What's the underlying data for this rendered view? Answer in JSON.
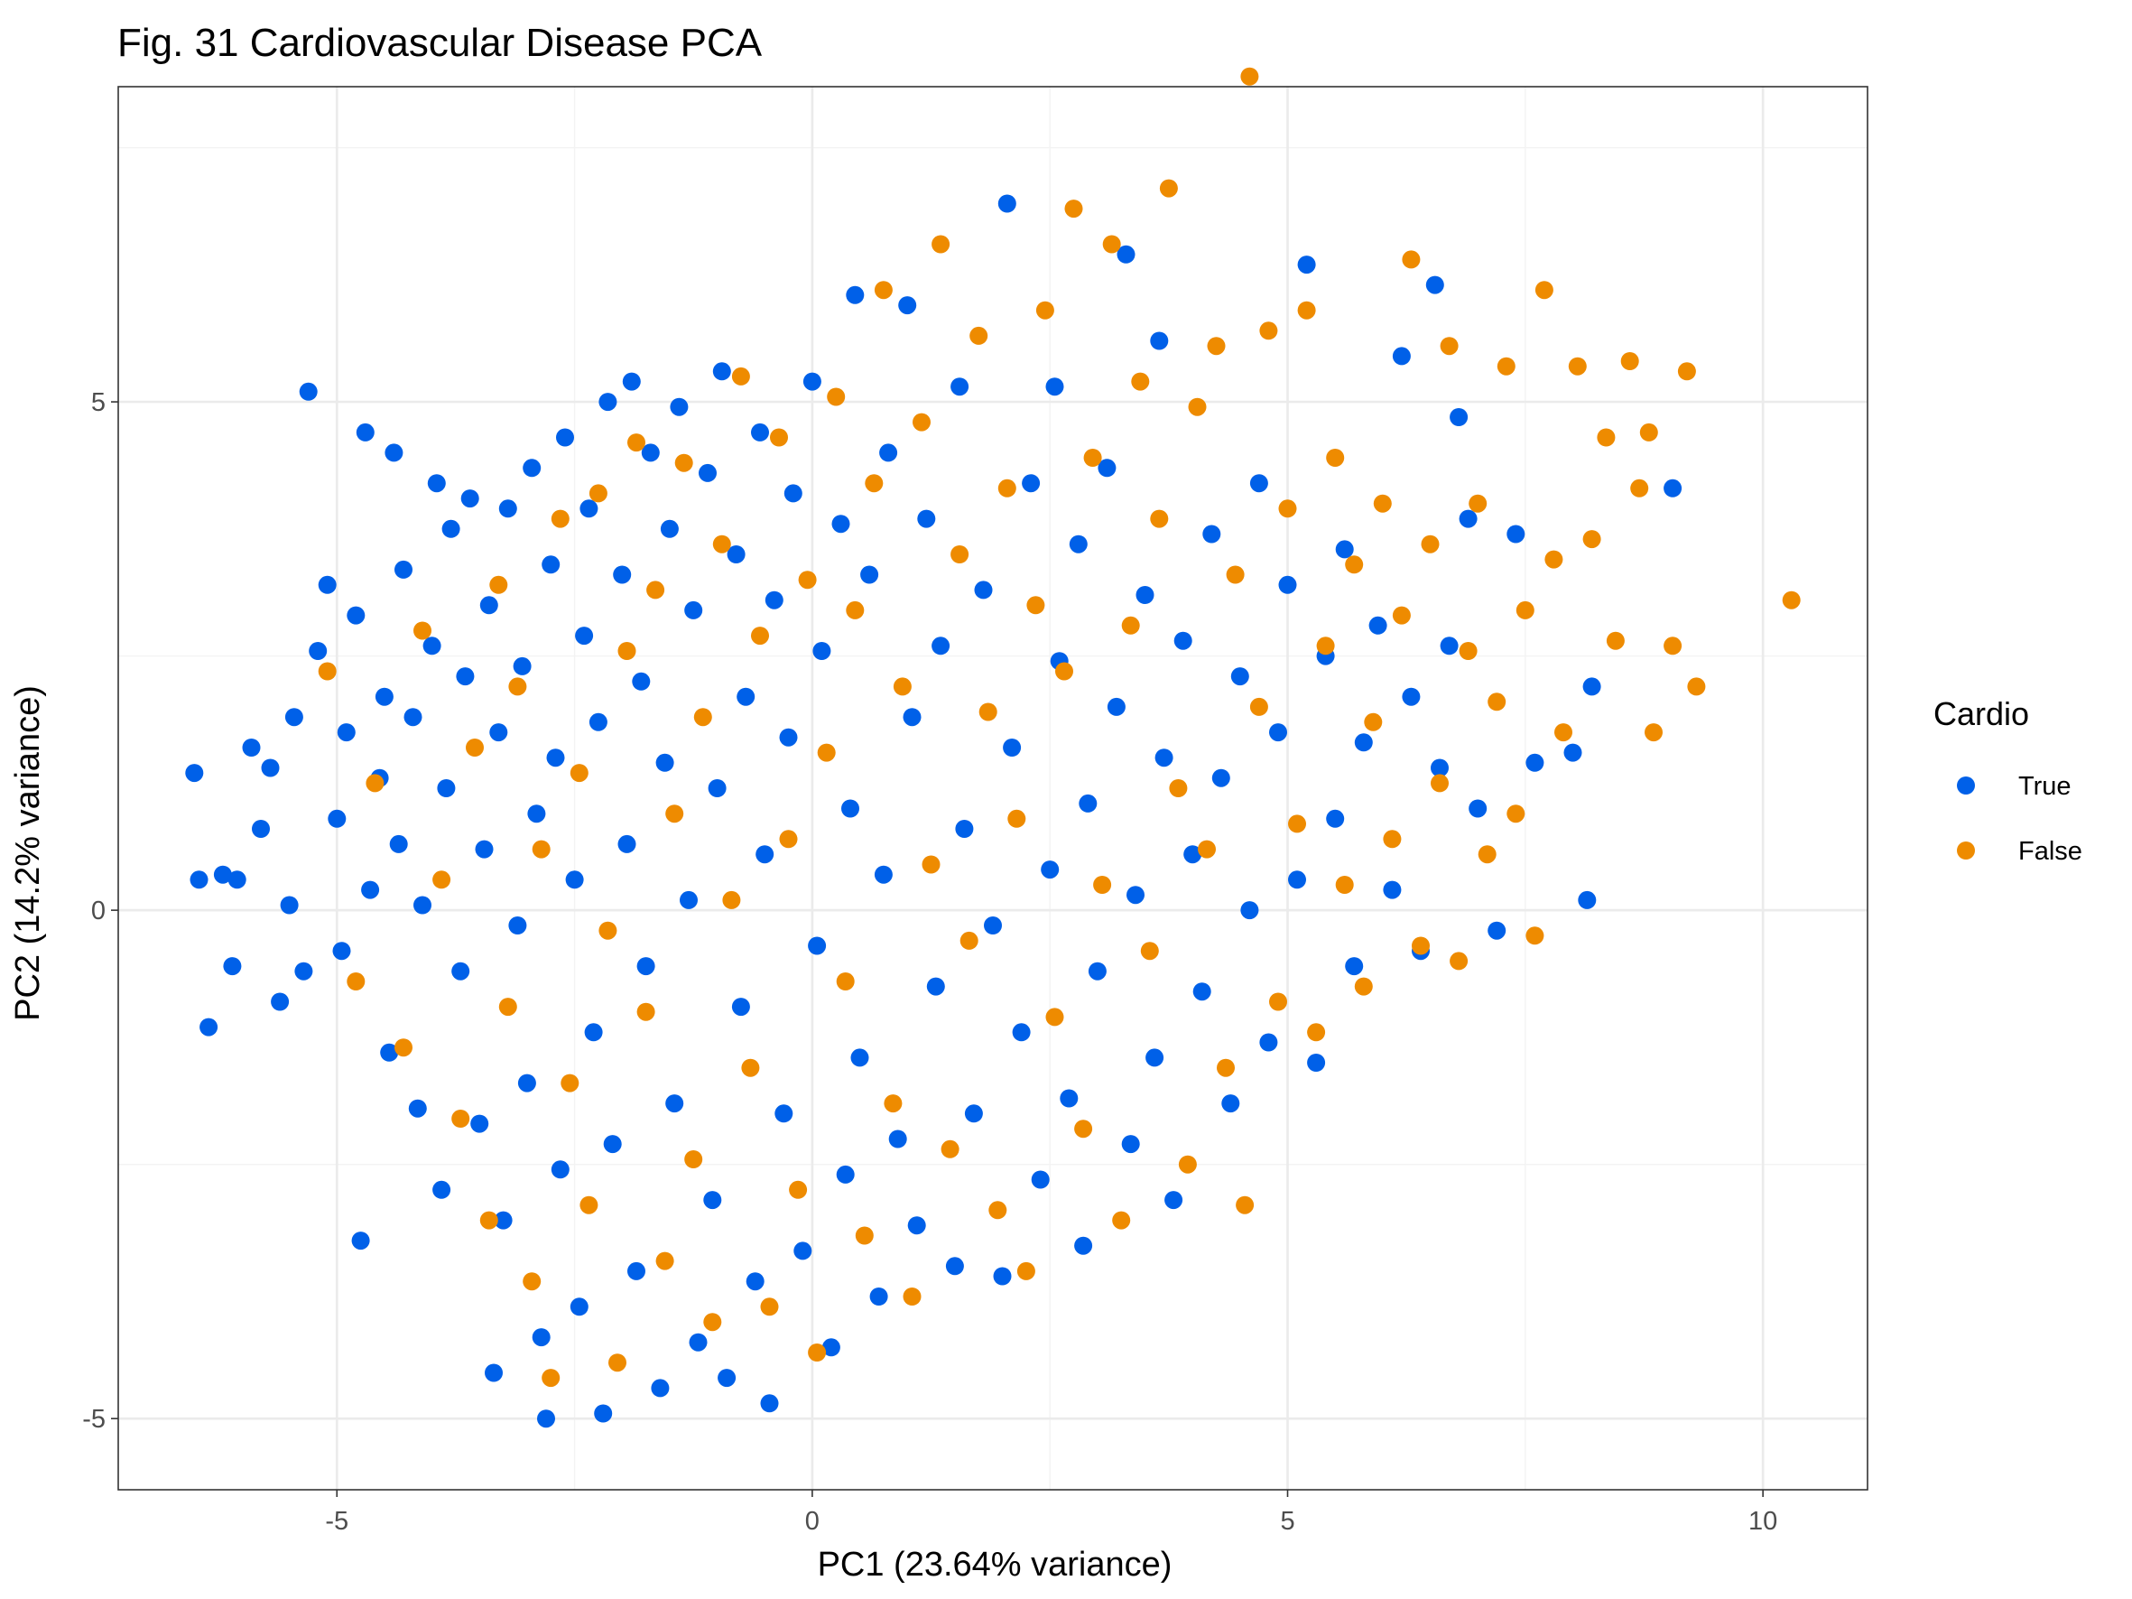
{
  "chart_data": {
    "type": "scatter",
    "title": "Fig. 31 Cardiovascular Disease PCA",
    "xlabel": "PC1 (23.64% variance)",
    "ylabel": "PC2 (14.2% variance)",
    "xlim": [
      -7.3,
      11.1
    ],
    "ylim": [
      -5.7,
      8.1
    ],
    "xticks": [
      -5,
      0,
      5,
      10
    ],
    "yticks": [
      -5,
      0,
      5
    ],
    "xtick_labels": [
      "-5",
      "0",
      "5",
      "10"
    ],
    "ytick_labels": [
      "-5",
      "0",
      "5"
    ],
    "grid": true,
    "legend": {
      "title": "Cardio",
      "position": "right"
    },
    "series": [
      {
        "name": "True",
        "color": "#0060e8",
        "points": [
          [
            -6.5,
            1.35
          ],
          [
            -6.45,
            0.3
          ],
          [
            -6.35,
            -1.15
          ],
          [
            -6.2,
            0.35
          ],
          [
            -6.1,
            -0.55
          ],
          [
            -6.05,
            0.3
          ],
          [
            -5.9,
            1.6
          ],
          [
            -5.8,
            0.8
          ],
          [
            -5.7,
            1.4
          ],
          [
            -5.6,
            -0.9
          ],
          [
            -5.5,
            0.05
          ],
          [
            -5.45,
            1.9
          ],
          [
            -5.35,
            -0.6
          ],
          [
            -5.3,
            5.1
          ],
          [
            -5.2,
            2.55
          ],
          [
            -5.1,
            3.2
          ],
          [
            -5.0,
            0.9
          ],
          [
            -4.95,
            -0.4
          ],
          [
            -4.9,
            1.75
          ],
          [
            -4.8,
            2.9
          ],
          [
            -4.75,
            -3.25
          ],
          [
            -4.7,
            4.7
          ],
          [
            -4.65,
            0.2
          ],
          [
            -4.55,
            1.3
          ],
          [
            -4.5,
            2.1
          ],
          [
            -4.45,
            -1.4
          ],
          [
            -4.4,
            4.5
          ],
          [
            -4.35,
            0.65
          ],
          [
            -4.3,
            3.35
          ],
          [
            -4.2,
            1.9
          ],
          [
            -4.15,
            -1.95
          ],
          [
            -4.1,
            0.05
          ],
          [
            -4.0,
            2.6
          ],
          [
            -3.95,
            4.2
          ],
          [
            -3.9,
            -2.75
          ],
          [
            -3.85,
            1.2
          ],
          [
            -3.8,
            3.75
          ],
          [
            -3.7,
            -0.6
          ],
          [
            -3.65,
            2.3
          ],
          [
            -3.6,
            4.05
          ],
          [
            -3.5,
            -2.1
          ],
          [
            -3.45,
            0.6
          ],
          [
            -3.4,
            3.0
          ],
          [
            -3.35,
            -4.55
          ],
          [
            -3.3,
            1.75
          ],
          [
            -3.25,
            -3.05
          ],
          [
            -3.2,
            3.95
          ],
          [
            -3.1,
            -0.15
          ],
          [
            -3.05,
            2.4
          ],
          [
            -3.0,
            -1.7
          ],
          [
            -2.95,
            4.35
          ],
          [
            -2.9,
            0.95
          ],
          [
            -2.85,
            -4.2
          ],
          [
            -2.8,
            -5.0
          ],
          [
            -2.75,
            3.4
          ],
          [
            -2.7,
            1.5
          ],
          [
            -2.65,
            -2.55
          ],
          [
            -2.6,
            4.65
          ],
          [
            -2.5,
            0.3
          ],
          [
            -2.45,
            -3.9
          ],
          [
            -2.4,
            2.7
          ],
          [
            -2.35,
            3.95
          ],
          [
            -2.3,
            -1.2
          ],
          [
            -2.25,
            1.85
          ],
          [
            -2.2,
            -4.95
          ],
          [
            -2.15,
            5.0
          ],
          [
            -2.1,
            -2.3
          ],
          [
            -2.0,
            3.3
          ],
          [
            -1.95,
            0.65
          ],
          [
            -1.9,
            5.2
          ],
          [
            -1.85,
            -3.55
          ],
          [
            -1.8,
            2.25
          ],
          [
            -1.75,
            -0.55
          ],
          [
            -1.7,
            4.5
          ],
          [
            -1.6,
            -4.7
          ],
          [
            -1.55,
            1.45
          ],
          [
            -1.5,
            3.75
          ],
          [
            -1.45,
            -1.9
          ],
          [
            -1.4,
            4.95
          ],
          [
            -1.3,
            0.1
          ],
          [
            -1.25,
            2.95
          ],
          [
            -1.2,
            -4.25
          ],
          [
            -1.1,
            4.3
          ],
          [
            -1.05,
            -2.85
          ],
          [
            -1.0,
            1.2
          ],
          [
            -0.95,
            5.3
          ],
          [
            -0.9,
            -4.6
          ],
          [
            -0.8,
            3.5
          ],
          [
            -0.75,
            -0.95
          ],
          [
            -0.7,
            2.1
          ],
          [
            -0.6,
            -3.65
          ],
          [
            -0.55,
            4.7
          ],
          [
            -0.5,
            0.55
          ],
          [
            -0.45,
            -4.85
          ],
          [
            -0.4,
            3.05
          ],
          [
            -0.3,
            -2.0
          ],
          [
            -0.25,
            1.7
          ],
          [
            -0.2,
            4.1
          ],
          [
            -0.1,
            -3.35
          ],
          [
            0.0,
            5.2
          ],
          [
            0.05,
            -0.35
          ],
          [
            0.1,
            2.55
          ],
          [
            0.2,
            -4.3
          ],
          [
            0.3,
            3.8
          ],
          [
            0.35,
            -2.6
          ],
          [
            0.4,
            1.0
          ],
          [
            0.45,
            6.05
          ],
          [
            0.5,
            -1.45
          ],
          [
            0.6,
            3.3
          ],
          [
            0.7,
            -3.8
          ],
          [
            0.75,
            0.35
          ],
          [
            0.8,
            4.5
          ],
          [
            0.9,
            -2.25
          ],
          [
            1.0,
            5.95
          ],
          [
            1.05,
            1.9
          ],
          [
            1.1,
            -3.1
          ],
          [
            1.2,
            3.85
          ],
          [
            1.3,
            -0.75
          ],
          [
            1.35,
            2.6
          ],
          [
            1.5,
            -3.5
          ],
          [
            1.55,
            5.15
          ],
          [
            1.6,
            0.8
          ],
          [
            1.7,
            -2.0
          ],
          [
            1.8,
            3.15
          ],
          [
            1.9,
            -0.15
          ],
          [
            2.0,
            -3.6
          ],
          [
            2.05,
            6.95
          ],
          [
            2.1,
            1.6
          ],
          [
            2.2,
            -1.2
          ],
          [
            2.3,
            4.2
          ],
          [
            2.4,
            -2.65
          ],
          [
            2.5,
            0.4
          ],
          [
            2.55,
            5.15
          ],
          [
            2.6,
            2.45
          ],
          [
            2.7,
            -1.85
          ],
          [
            2.8,
            3.6
          ],
          [
            2.85,
            -3.3
          ],
          [
            2.9,
            1.05
          ],
          [
            3.0,
            -0.6
          ],
          [
            3.1,
            4.35
          ],
          [
            3.2,
            2.0
          ],
          [
            3.3,
            6.45
          ],
          [
            3.35,
            -2.3
          ],
          [
            3.4,
            0.15
          ],
          [
            3.5,
            3.1
          ],
          [
            3.6,
            -1.45
          ],
          [
            3.65,
            5.6
          ],
          [
            3.7,
            1.5
          ],
          [
            3.8,
            -2.85
          ],
          [
            3.9,
            2.65
          ],
          [
            4.0,
            0.55
          ],
          [
            4.1,
            -0.8
          ],
          [
            4.2,
            3.7
          ],
          [
            4.3,
            1.3
          ],
          [
            4.4,
            -1.9
          ],
          [
            4.5,
            2.3
          ],
          [
            4.6,
            0.0
          ],
          [
            4.7,
            4.2
          ],
          [
            4.8,
            -1.3
          ],
          [
            4.9,
            1.75
          ],
          [
            5.0,
            3.2
          ],
          [
            5.1,
            0.3
          ],
          [
            5.2,
            6.35
          ],
          [
            5.3,
            -1.5
          ],
          [
            5.4,
            2.5
          ],
          [
            5.5,
            0.9
          ],
          [
            5.6,
            3.55
          ],
          [
            5.7,
            -0.55
          ],
          [
            5.8,
            1.65
          ],
          [
            5.95,
            2.8
          ],
          [
            6.1,
            0.2
          ],
          [
            6.2,
            5.45
          ],
          [
            6.3,
            2.1
          ],
          [
            6.4,
            -0.4
          ],
          [
            6.55,
            6.15
          ],
          [
            6.6,
            1.4
          ],
          [
            6.7,
            2.6
          ],
          [
            6.8,
            4.85
          ],
          [
            6.9,
            3.85
          ],
          [
            7.0,
            1.0
          ],
          [
            7.2,
            -0.2
          ],
          [
            7.4,
            3.7
          ],
          [
            7.6,
            1.45
          ],
          [
            8.0,
            1.55
          ],
          [
            8.15,
            0.1
          ],
          [
            8.2,
            2.2
          ],
          [
            9.05,
            4.15
          ]
        ]
      },
      {
        "name": "False",
        "color": "#ee8b00",
        "points": [
          [
            -5.1,
            2.35
          ],
          [
            -4.8,
            -0.7
          ],
          [
            -4.6,
            1.25
          ],
          [
            -4.3,
            -1.35
          ],
          [
            -4.1,
            2.75
          ],
          [
            -3.9,
            0.3
          ],
          [
            -3.7,
            -2.05
          ],
          [
            -3.55,
            1.6
          ],
          [
            -3.4,
            -3.05
          ],
          [
            -3.3,
            3.2
          ],
          [
            -3.2,
            -0.95
          ],
          [
            -3.1,
            2.2
          ],
          [
            -2.95,
            -3.65
          ],
          [
            -2.85,
            0.6
          ],
          [
            -2.75,
            -4.6
          ],
          [
            -2.65,
            3.85
          ],
          [
            -2.55,
            -1.7
          ],
          [
            -2.45,
            1.35
          ],
          [
            -2.35,
            -2.9
          ],
          [
            -2.25,
            4.1
          ],
          [
            -2.15,
            -0.2
          ],
          [
            -2.05,
            -4.45
          ],
          [
            -1.95,
            2.55
          ],
          [
            -1.85,
            4.6
          ],
          [
            -1.75,
            -1.0
          ],
          [
            -1.65,
            3.15
          ],
          [
            -1.55,
            -3.45
          ],
          [
            -1.45,
            0.95
          ],
          [
            -1.35,
            4.4
          ],
          [
            -1.25,
            -2.45
          ],
          [
            -1.15,
            1.9
          ],
          [
            -1.05,
            -4.05
          ],
          [
            -0.95,
            3.6
          ],
          [
            -0.85,
            0.1
          ],
          [
            -0.75,
            5.25
          ],
          [
            -0.65,
            -1.55
          ],
          [
            -0.55,
            2.7
          ],
          [
            -0.45,
            -3.9
          ],
          [
            -0.35,
            4.65
          ],
          [
            -0.25,
            0.7
          ],
          [
            -0.15,
            -2.75
          ],
          [
            -0.05,
            3.25
          ],
          [
            0.05,
            -4.35
          ],
          [
            0.15,
            1.55
          ],
          [
            0.25,
            5.05
          ],
          [
            0.35,
            -0.7
          ],
          [
            0.45,
            2.95
          ],
          [
            0.55,
            -3.2
          ],
          [
            0.65,
            4.2
          ],
          [
            0.75,
            6.1
          ],
          [
            0.85,
            -1.9
          ],
          [
            0.95,
            2.2
          ],
          [
            1.05,
            -3.8
          ],
          [
            1.15,
            4.8
          ],
          [
            1.25,
            0.45
          ],
          [
            1.35,
            6.55
          ],
          [
            1.45,
            -2.35
          ],
          [
            1.55,
            3.5
          ],
          [
            1.65,
            -0.3
          ],
          [
            1.75,
            5.65
          ],
          [
            1.85,
            1.95
          ],
          [
            1.95,
            -2.95
          ],
          [
            2.05,
            4.15
          ],
          [
            2.15,
            0.9
          ],
          [
            2.25,
            -3.55
          ],
          [
            2.35,
            3.0
          ],
          [
            2.45,
            5.9
          ],
          [
            2.55,
            -1.05
          ],
          [
            2.65,
            2.35
          ],
          [
            2.75,
            6.9
          ],
          [
            2.85,
            -2.15
          ],
          [
            2.95,
            4.45
          ],
          [
            3.05,
            0.25
          ],
          [
            3.15,
            6.55
          ],
          [
            3.25,
            -3.05
          ],
          [
            3.35,
            2.8
          ],
          [
            3.45,
            5.2
          ],
          [
            3.55,
            -0.4
          ],
          [
            3.65,
            3.85
          ],
          [
            3.75,
            7.1
          ],
          [
            3.85,
            1.2
          ],
          [
            3.95,
            -2.5
          ],
          [
            4.05,
            4.95
          ],
          [
            4.15,
            0.6
          ],
          [
            4.25,
            5.55
          ],
          [
            4.35,
            -1.55
          ],
          [
            4.45,
            3.3
          ],
          [
            4.55,
            -2.9
          ],
          [
            4.6,
            8.2
          ],
          [
            4.7,
            2.0
          ],
          [
            4.8,
            5.7
          ],
          [
            4.9,
            -0.9
          ],
          [
            5.0,
            3.95
          ],
          [
            5.1,
            0.85
          ],
          [
            5.2,
            5.9
          ],
          [
            5.3,
            -1.2
          ],
          [
            5.4,
            2.6
          ],
          [
            5.5,
            4.45
          ],
          [
            5.6,
            0.25
          ],
          [
            5.7,
            3.4
          ],
          [
            5.8,
            -0.75
          ],
          [
            5.9,
            1.85
          ],
          [
            6.0,
            4.0
          ],
          [
            6.1,
            0.7
          ],
          [
            6.2,
            2.9
          ],
          [
            6.3,
            6.4
          ],
          [
            6.4,
            -0.35
          ],
          [
            6.5,
            3.6
          ],
          [
            6.6,
            1.25
          ],
          [
            6.7,
            5.55
          ],
          [
            6.8,
            -0.5
          ],
          [
            6.9,
            2.55
          ],
          [
            7.0,
            4.0
          ],
          [
            7.1,
            0.55
          ],
          [
            7.2,
            2.05
          ],
          [
            7.3,
            5.35
          ],
          [
            7.4,
            0.95
          ],
          [
            7.5,
            2.95
          ],
          [
            7.6,
            -0.25
          ],
          [
            7.7,
            6.1
          ],
          [
            7.8,
            3.45
          ],
          [
            7.9,
            1.75
          ],
          [
            8.05,
            5.35
          ],
          [
            8.2,
            3.65
          ],
          [
            8.35,
            4.65
          ],
          [
            8.45,
            2.65
          ],
          [
            8.6,
            5.4
          ],
          [
            8.7,
            4.15
          ],
          [
            8.8,
            4.7
          ],
          [
            8.85,
            1.75
          ],
          [
            9.05,
            2.6
          ],
          [
            9.2,
            5.3
          ],
          [
            9.3,
            2.2
          ],
          [
            10.3,
            3.05
          ]
        ]
      }
    ]
  }
}
